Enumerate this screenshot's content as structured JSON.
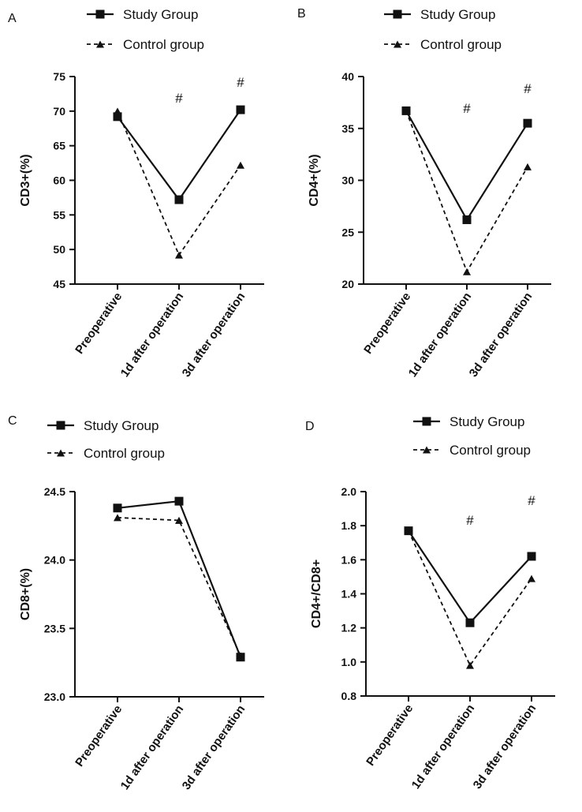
{
  "chart_data": [
    {
      "type": "line",
      "panel": "A",
      "ylabel": "CD3+(%)",
      "ylim": [
        45,
        75
      ],
      "yticks": [
        45,
        50,
        55,
        60,
        65,
        70,
        75
      ],
      "ytick_labels": [
        "45",
        "50",
        "55",
        "60",
        "65",
        "70",
        "75"
      ],
      "categories": [
        "Preoperative",
        "1d after operation",
        "3d after operation"
      ],
      "series": [
        {
          "name": "Study Group",
          "values": [
            69.2,
            57.2,
            70.2
          ],
          "style": "solid",
          "marker": "square"
        },
        {
          "name": "Control group",
          "values": [
            70.0,
            49.2,
            62.2
          ],
          "style": "dashed",
          "marker": "triangle"
        }
      ],
      "annotations": [
        "",
        "#",
        "#"
      ],
      "legend": "top"
    },
    {
      "type": "line",
      "panel": "B",
      "ylabel": "CD4+(%)",
      "ylim": [
        20,
        40
      ],
      "yticks": [
        20,
        25,
        30,
        35,
        40
      ],
      "ytick_labels": [
        "20",
        "25",
        "30",
        "35",
        "40"
      ],
      "categories": [
        "Preoperative",
        "1d after operation",
        "3d after operation"
      ],
      "series": [
        {
          "name": "Study Group",
          "values": [
            36.7,
            26.2,
            35.5
          ],
          "style": "solid",
          "marker": "square"
        },
        {
          "name": "Control group",
          "values": [
            36.7,
            21.2,
            31.3
          ],
          "style": "dashed",
          "marker": "triangle"
        }
      ],
      "annotations": [
        "",
        "#",
        "#"
      ],
      "legend": "top"
    },
    {
      "type": "line",
      "panel": "C",
      "ylabel": "CD8+(%)",
      "ylim": [
        23.0,
        24.5
      ],
      "yticks": [
        23.0,
        23.5,
        24.0,
        24.5
      ],
      "ytick_labels": [
        "23.0",
        "23.5",
        "24.0",
        "24.5"
      ],
      "categories": [
        "Preoperative",
        "1d after operation",
        "3d after operation"
      ],
      "series": [
        {
          "name": "Study Group",
          "values": [
            24.38,
            24.43,
            23.29
          ],
          "style": "solid",
          "marker": "square"
        },
        {
          "name": "Control group",
          "values": [
            24.31,
            24.29,
            23.3
          ],
          "style": "dashed",
          "marker": "triangle"
        }
      ],
      "annotations": [
        "",
        "",
        ""
      ],
      "legend": "top"
    },
    {
      "type": "line",
      "panel": "D",
      "ylabel": "CD4+/CD8+",
      "ylim": [
        0.8,
        2.0
      ],
      "yticks": [
        0.8,
        1.0,
        1.2,
        1.4,
        1.6,
        1.8,
        2.0
      ],
      "ytick_labels": [
        "0.8",
        "1.0",
        "1.2",
        "1.4",
        "1.6",
        "1.8",
        "2.0"
      ],
      "categories": [
        "Preoperative",
        "1d after operation",
        "3d after operation"
      ],
      "series": [
        {
          "name": "Study Group",
          "values": [
            1.77,
            1.23,
            1.62
          ],
          "style": "solid",
          "marker": "square"
        },
        {
          "name": "Control group",
          "values": [
            1.77,
            0.98,
            1.49
          ],
          "style": "dashed",
          "marker": "triangle"
        }
      ],
      "annotations": [
        "",
        "#",
        "#"
      ],
      "legend": "top"
    }
  ]
}
